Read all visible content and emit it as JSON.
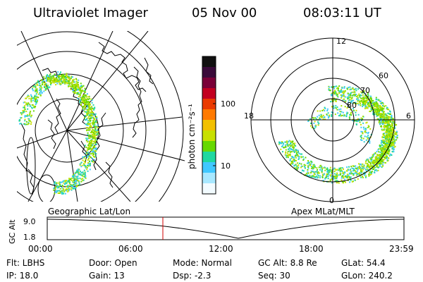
{
  "header": {
    "title": "Ultraviolet Imager",
    "date": "05 Nov 00",
    "time": "08:03:11 UT"
  },
  "colorbar": {
    "unit_label": "photon cm⁻²s⁻¹",
    "tick_labels": [
      "100",
      "10"
    ],
    "colors": [
      "#101010",
      "#3a0a3a",
      "#7a0038",
      "#c20020",
      "#ea3a00",
      "#ff7a00",
      "#f2c000",
      "#c8e000",
      "#66d800",
      "#20d8a0",
      "#40c8ff",
      "#a8e8ff",
      "#f2fbff"
    ]
  },
  "left_panel": {
    "caption": "Geographic Lat/Lon"
  },
  "right_panel": {
    "caption": "Apex MLat/MLT",
    "mlt_labels": {
      "top": "12",
      "left": "18",
      "right": "6",
      "bottom": "0"
    },
    "lat_labels": [
      "60",
      "70",
      "80"
    ]
  },
  "timeline": {
    "ylabel": "GC Alt",
    "yticks": [
      "9.0",
      "1.8"
    ],
    "xticks": [
      "00:00",
      "06:00",
      "12:00",
      "18:00",
      "23:59"
    ],
    "marker_time": "08:03",
    "marker_color": "#d00000"
  },
  "status": {
    "filter": "Flt: LBHS",
    "door": "Door: Open",
    "mode": "Mode: Normal",
    "gc_alt": "GC Alt: 8.8 Re",
    "glat": "GLat: 54.4",
    "ip": "IP: 18.0",
    "gain": "Gain: 13",
    "dsp": "Dsp: -2.3",
    "seq": "Seq: 30",
    "glon": "GLon: 240.2"
  }
}
